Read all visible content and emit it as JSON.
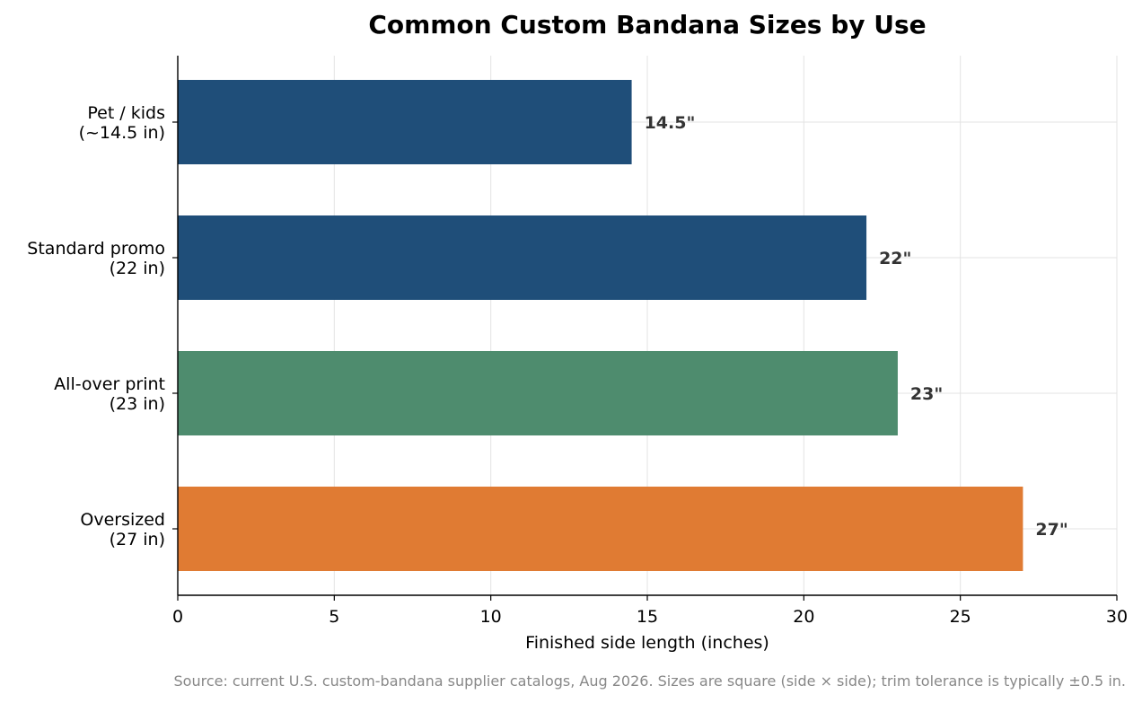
{
  "chart_data": {
    "type": "bar",
    "orientation": "horizontal",
    "title": "Common Custom Bandana Sizes by Use",
    "xlabel": "Finished side length (inches)",
    "ylabel": "",
    "xlim": [
      0,
      30
    ],
    "xticks": [
      0,
      5,
      10,
      15,
      20,
      25,
      30
    ],
    "grid": true,
    "categories": [
      [
        "Pet / kids",
        "(~14.5 in)"
      ],
      [
        "Standard promo",
        "(22 in)"
      ],
      [
        "All-over print",
        "(23 in)"
      ],
      [
        "Oversized",
        "(27 in)"
      ]
    ],
    "values": [
      14.5,
      22,
      23,
      27
    ],
    "data_labels": [
      "14.5\"",
      "22\"",
      "23\"",
      "27\""
    ],
    "colors": [
      "#1f4e79",
      "#1f4e79",
      "#4e8c6e",
      "#e07b33"
    ],
    "source": "Source: current U.S. custom-bandana supplier catalogs, Aug 2026. Sizes are square (side × side); trim tolerance is typically ±0.5 in."
  }
}
